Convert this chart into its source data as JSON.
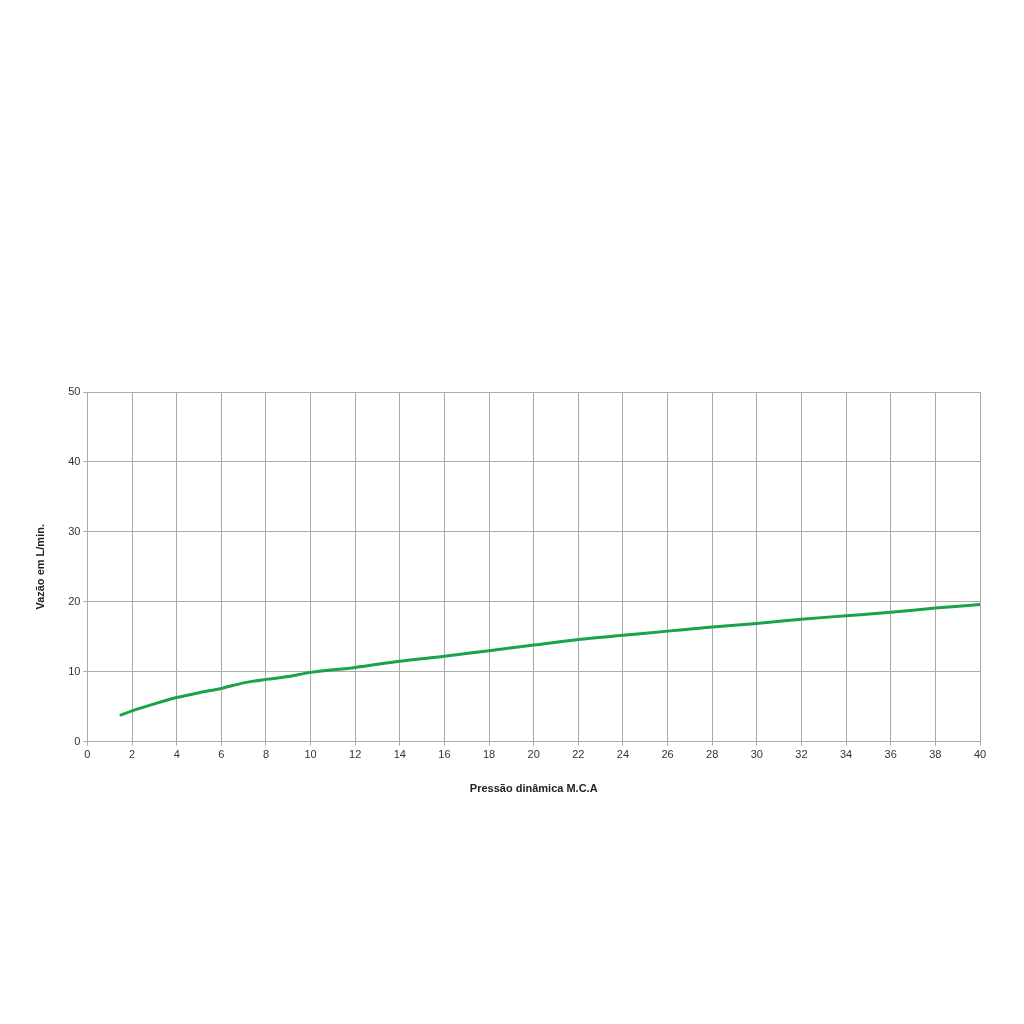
{
  "chart_data": {
    "type": "line",
    "xlabel": "Pressão dinâmica M.C.A",
    "ylabel": "Vazão em L/min.",
    "series": [
      {
        "color": "#1aa34a",
        "x": [
          1.5,
          2,
          3,
          4,
          5,
          6,
          7,
          8,
          9,
          10,
          12,
          14,
          16,
          18,
          20,
          22,
          24,
          26,
          28,
          30,
          32,
          34,
          36,
          38,
          40
        ],
        "values": [
          3.8,
          4.4,
          5.4,
          6.3,
          7.0,
          7.6,
          8.4,
          8.9,
          9.3,
          9.9,
          10.6,
          11.5,
          12.2,
          13.0,
          13.8,
          14.6,
          15.2,
          15.8,
          16.4,
          16.9,
          17.5,
          18.0,
          18.5,
          19.1,
          19.6
        ]
      }
    ],
    "xlim": [
      0,
      40
    ],
    "xticks": [
      0,
      2,
      4,
      6,
      8,
      10,
      12,
      14,
      16,
      18,
      20,
      22,
      24,
      26,
      28,
      30,
      32,
      34,
      36,
      38,
      40
    ],
    "ylim": [
      0,
      50
    ],
    "yticks": [
      0,
      10,
      20,
      30,
      40,
      50
    ],
    "grid": true,
    "legend": false,
    "marker": "none",
    "line_style": "solid"
  }
}
